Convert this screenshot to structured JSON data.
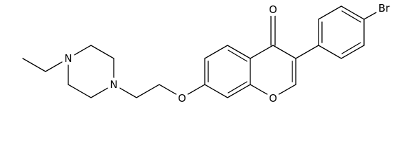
{
  "atoms": [
    {
      "label": "O"
    },
    {
      "label": "Br"
    },
    {
      "label": "O"
    },
    {
      "label": "O"
    },
    {
      "label": "N"
    },
    {
      "label": "N"
    }
  ]
}
